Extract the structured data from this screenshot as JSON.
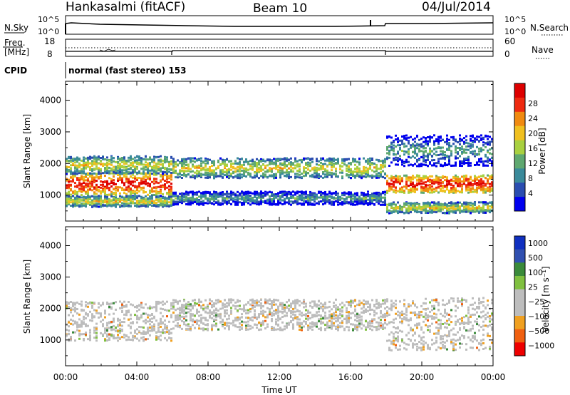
{
  "header": {
    "station": "Hankasalmi (fitACF)",
    "beam": "Beam 10",
    "date": "04/Jul/2014"
  },
  "summary_panels": {
    "nsky_label": "N.Sky",
    "nsky_tick_top": "10^5",
    "nsky_tick_bottom": "10^0",
    "nsearch_label": "N.Search",
    "freq_label_1": "Freq.",
    "freq_label_2": "[MHz]",
    "freq_tick_top": "18",
    "freq_tick_bottom": "8",
    "nave_tick_top": "60",
    "nave_tick_bottom": "0",
    "nave_label": "Nave",
    "cpid_label": "CPID",
    "cpid_text": "normal (fast stereo) 153"
  },
  "power_colorbar": {
    "label": "Power [dB]",
    "ticks": [
      "28",
      "24",
      "20",
      "16",
      "12",
      "8",
      "4"
    ]
  },
  "velocity_colorbar": {
    "label": "Velocity [m s⁻¹]",
    "ticks": [
      "1000",
      "500",
      "100",
      "25",
      "−25",
      "−100",
      "−500",
      "−1000"
    ]
  },
  "chart_data": [
    {
      "type": "heatmap",
      "title": "Power",
      "xlabel": "Time UT",
      "ylabel": "Slant Range [km]",
      "x_ticks": [
        "00:00",
        "04:00",
        "08:00",
        "12:00",
        "16:00",
        "20:00",
        "00:00"
      ],
      "y_ticks": [
        1000,
        2000,
        3000,
        4000
      ],
      "ylim": [
        180,
        4600
      ],
      "xlim_hours": [
        0,
        24
      ],
      "colorbar_label": "Power [dB]",
      "colorbar_range": [
        0,
        30
      ],
      "colors": [
        "#0000ee",
        "#2a4db0",
        "#3a8a9a",
        "#5fa870",
        "#a8d040",
        "#f0c020",
        "#f08a10",
        "#ee2a10",
        "#dd0000"
      ],
      "echo_bands": [
        {
          "from_h": 0,
          "to_h": 6,
          "center_km": 1350,
          "width_km": 500,
          "level": "high"
        },
        {
          "from_h": 0,
          "to_h": 6,
          "center_km": 1950,
          "width_km": 400,
          "level": "mid"
        },
        {
          "from_h": 0,
          "to_h": 6,
          "center_km": 800,
          "width_km": 250,
          "level": "mid"
        },
        {
          "from_h": 6,
          "to_h": 18,
          "center_km": 1850,
          "width_km": 450,
          "level": "mid"
        },
        {
          "from_h": 6,
          "to_h": 18,
          "center_km": 900,
          "width_km": 300,
          "level": "low"
        },
        {
          "from_h": 18,
          "to_h": 24,
          "center_km": 1350,
          "width_km": 400,
          "level": "high"
        },
        {
          "from_h": 18,
          "to_h": 24,
          "center_km": 2400,
          "width_km": 700,
          "level": "low"
        },
        {
          "from_h": 18,
          "to_h": 24,
          "center_km": 600,
          "width_km": 250,
          "level": "mid"
        }
      ]
    },
    {
      "type": "heatmap",
      "title": "Velocity",
      "xlabel": "Time UT",
      "ylabel": "Slant Range [km]",
      "x_ticks": [
        "00:00",
        "04:00",
        "08:00",
        "12:00",
        "16:00",
        "20:00",
        "00:00"
      ],
      "y_ticks": [
        1000,
        2000,
        3000,
        4000
      ],
      "ylim": [
        180,
        4600
      ],
      "xlim_hours": [
        0,
        24
      ],
      "colorbar_label": "Velocity [m s⁻¹]",
      "colorbar_range": [
        -1000,
        1000
      ],
      "colors": [
        "#ee0000",
        "#f06010",
        "#f0a020",
        "#bdbdbd",
        "#bdbdbd",
        "#80c040",
        "#3a8a3a",
        "#3050b0",
        "#1030c0"
      ],
      "dominant_value": "near zero (ground scatter, grey)",
      "echo_bands": [
        {
          "from_h": 0,
          "to_h": 6,
          "center_km": 1600,
          "width_km": 900,
          "level": "zero"
        },
        {
          "from_h": 6,
          "to_h": 18,
          "center_km": 1800,
          "width_km": 700,
          "level": "zero"
        },
        {
          "from_h": 18,
          "to_h": 24,
          "center_km": 1500,
          "width_km": 1200,
          "level": "zero"
        }
      ]
    }
  ]
}
